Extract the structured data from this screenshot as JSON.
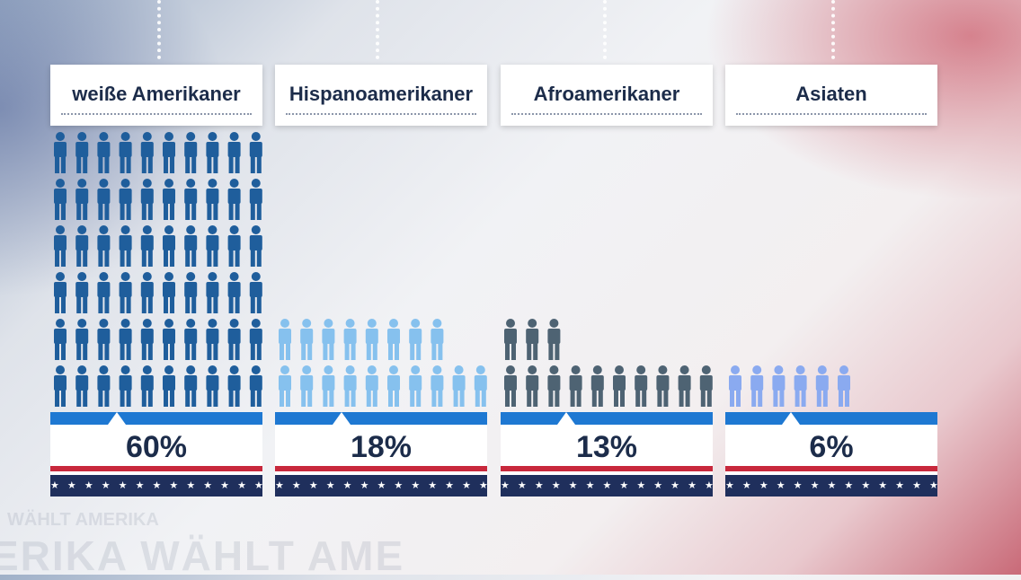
{
  "chart_data": {
    "type": "bar",
    "categories": [
      "weiße Amerikaner",
      "Hispanoamerikaner",
      "Afroamerikaner",
      "Asiaten"
    ],
    "values": [
      60,
      18,
      13,
      6
    ],
    "value_labels": [
      "60%",
      "18%",
      "13%",
      "6%"
    ],
    "colors": [
      "#1f5e9c",
      "#86c1ee",
      "#4e6373",
      "#8aaaf0"
    ],
    "title": "",
    "xlabel": "",
    "ylabel": ""
  },
  "background": {
    "watermark_large": "ERIKA WÄHLT AME",
    "watermark_small": "WÄHLT AMERIKA"
  },
  "icons": {
    "person": "person-icon",
    "star": "star-icon"
  },
  "decor": {
    "stars": "★ ★ ★ ★ ★ ★ ★ ★ ★ ★ ★ ★ ★ ★ ★ ★"
  }
}
